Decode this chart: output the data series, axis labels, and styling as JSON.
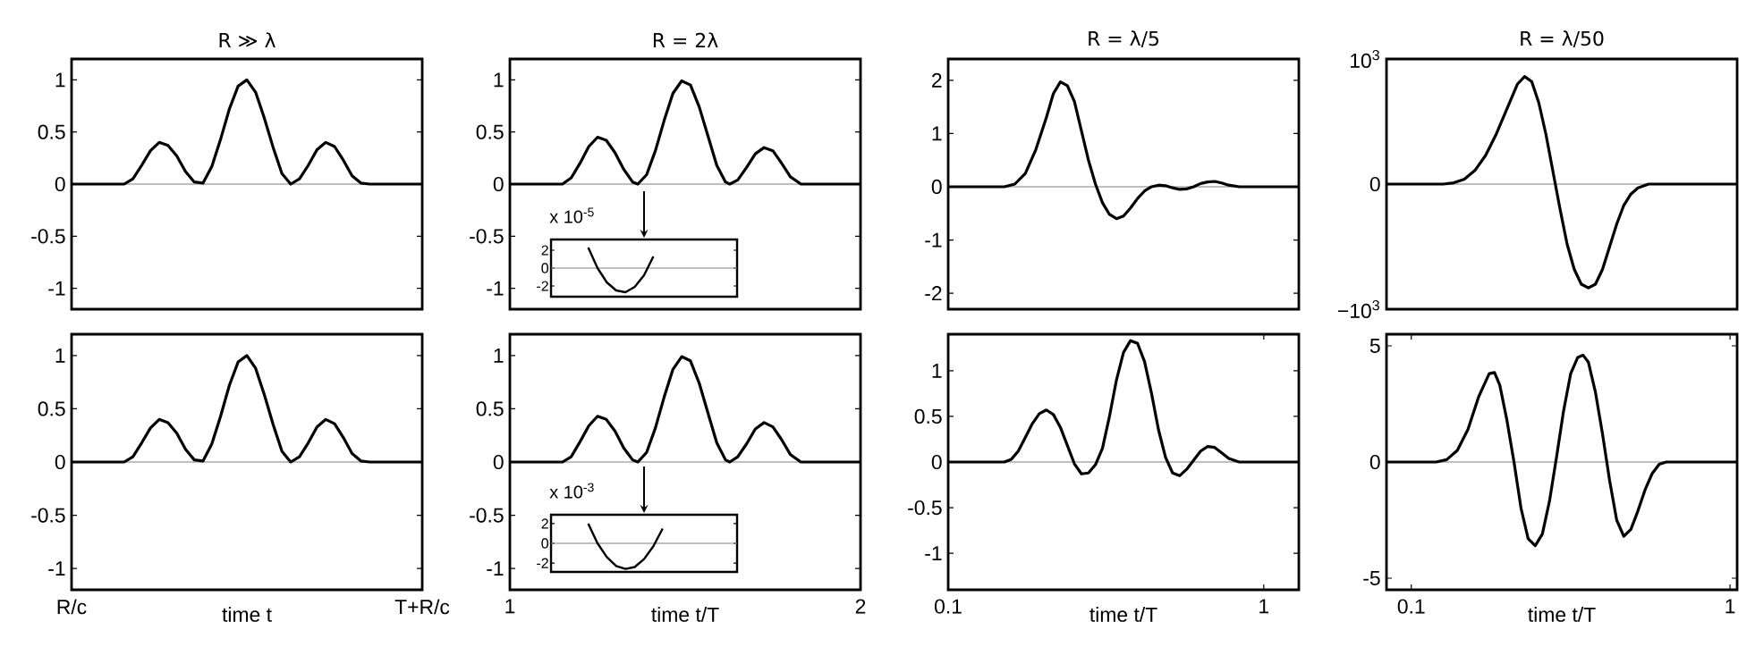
{
  "chart_data": [
    {
      "type": "line",
      "title": "R ≫ λ",
      "categories": [
        null,
        null,
        null,
        null,
        null,
        null,
        null,
        null,
        null,
        null,
        null,
        null,
        null,
        null,
        null,
        null,
        null,
        null,
        null,
        null,
        null,
        null,
        null,
        null,
        null,
        null,
        null,
        null,
        null,
        null,
        null,
        null,
        null,
        null,
        null,
        null,
        null,
        null,
        null,
        null,
        null
      ],
      "ylim": [
        -1.2,
        1.2
      ],
      "yticks": [
        -1,
        -0.5,
        0,
        0.5,
        1
      ],
      "tick_labels": "y",
      "ref_lines": [
        {
          "axis": "y",
          "value": 0,
          "color": "#808080"
        }
      ],
      "series": [
        {
          "color": "#000000",
          "values": [
            0,
            0,
            0,
            0,
            0,
            0,
            0,
            0.05,
            0.18,
            0.32,
            0.4,
            0.37,
            0.27,
            0.12,
            0.02,
            0.01,
            0.17,
            0.43,
            0.72,
            0.94,
            1,
            0.88,
            0.63,
            0.35,
            0.1,
            0,
            0.05,
            0.18,
            0.33,
            0.4,
            0.36,
            0.23,
            0.08,
            0.01,
            0,
            0,
            0,
            0,
            0,
            0,
            0
          ]
        }
      ]
    },
    {
      "type": "line",
      "title": "R = 2λ",
      "xlim": [
        1,
        2
      ],
      "ylim": [
        -1.2,
        1.2
      ],
      "yticks": [
        -1,
        -0.5,
        0,
        0.5,
        1
      ],
      "tick_labels": "y",
      "ref_lines": [
        {
          "axis": "y",
          "value": 0,
          "color": "#808080"
        }
      ],
      "series": [
        {
          "color": "#000000",
          "x": [
            1,
            1.15,
            1.175,
            1.2,
            1.225,
            1.25,
            1.275,
            1.3,
            1.325,
            1.35,
            1.365,
            1.39,
            1.415,
            1.44,
            1.465,
            1.49,
            1.515,
            1.54,
            1.565,
            1.59,
            1.615,
            1.627,
            1.65,
            1.675,
            1.7,
            1.725,
            1.75,
            1.775,
            1.8,
            1.83,
            2
          ],
          "values": [
            0,
            0,
            0.06,
            0.2,
            0.36,
            0.45,
            0.42,
            0.3,
            0.14,
            0.02,
            0,
            0.09,
            0.32,
            0.61,
            0.87,
            0.99,
            0.95,
            0.74,
            0.46,
            0.18,
            0.02,
            0,
            0.04,
            0.16,
            0.29,
            0.35,
            0.32,
            0.2,
            0.07,
            0,
            0
          ]
        }
      ]
    },
    {
      "type": "line",
      "title": "R = λ/5",
      "xlim": [
        0.1,
        1.1
      ],
      "ylim": [
        -2.3,
        2.4
      ],
      "yticks": [
        -2,
        -1,
        0,
        1,
        2
      ],
      "tick_labels": "y",
      "ref_lines": [
        {
          "axis": "y",
          "value": 0,
          "color": "#808080"
        }
      ],
      "series": [
        {
          "color": "#000000",
          "x": [
            0.1,
            0.26,
            0.29,
            0.32,
            0.35,
            0.38,
            0.4,
            0.42,
            0.44,
            0.46,
            0.48,
            0.5,
            0.52,
            0.54,
            0.56,
            0.58,
            0.6,
            0.62,
            0.64,
            0.66,
            0.68,
            0.7,
            0.72,
            0.74,
            0.76,
            0.78,
            0.8,
            0.82,
            0.84,
            0.86,
            0.88,
            0.9,
            0.93,
            1.1
          ],
          "values": [
            0,
            0,
            0.05,
            0.25,
            0.7,
            1.3,
            1.75,
            1.97,
            1.9,
            1.6,
            1.05,
            0.5,
            0.05,
            -0.3,
            -0.52,
            -0.6,
            -0.55,
            -0.4,
            -0.22,
            -0.08,
            0,
            0.03,
            0.02,
            -0.02,
            -0.05,
            -0.04,
            0,
            0.06,
            0.09,
            0.1,
            0.07,
            0.03,
            0,
            0
          ]
        }
      ]
    },
    {
      "type": "line",
      "title": "R = λ/50",
      "xlim": [
        0.03,
        1.02
      ],
      "ylim": [
        -1000,
        1000
      ],
      "yticks": [
        {
          "value": -1000,
          "label": "−10$^{3}$"
        },
        0,
        {
          "value": 1000,
          "label": "10$^{3}$"
        }
      ],
      "tick_labels": "y",
      "ref_lines": [
        {
          "axis": "y",
          "value": 0,
          "color": "#808080"
        }
      ],
      "series": [
        {
          "color": "#000000",
          "x": [
            0.03,
            0.19,
            0.22,
            0.25,
            0.28,
            0.31,
            0.34,
            0.37,
            0.4,
            0.42,
            0.44,
            0.46,
            0.48,
            0.5,
            0.52,
            0.54,
            0.56,
            0.58,
            0.6,
            0.62,
            0.64,
            0.66,
            0.68,
            0.7,
            0.72,
            0.74,
            0.77,
            0.8,
            1.02
          ],
          "values": [
            0,
            0,
            10,
            40,
            110,
            230,
            400,
            600,
            800,
            860,
            820,
            650,
            400,
            100,
            -200,
            -480,
            -680,
            -800,
            -830,
            -800,
            -680,
            -500,
            -320,
            -170,
            -80,
            -30,
            0,
            0,
            0
          ]
        }
      ]
    },
    {
      "type": "line",
      "xlabel": "time t",
      "categories": [
        "R/c",
        null,
        null,
        null,
        null,
        null,
        null,
        null,
        null,
        null,
        null,
        null,
        null,
        null,
        null,
        null,
        null,
        null,
        null,
        null,
        null,
        null,
        null,
        null,
        null,
        null,
        null,
        null,
        null,
        null,
        null,
        null,
        null,
        null,
        null,
        null,
        null,
        null,
        null,
        null,
        "T+R/c"
      ],
      "ylim": [
        -1.2,
        1.2
      ],
      "yticks": [
        -1,
        -0.5,
        0,
        0.5,
        1
      ],
      "ref_lines": [
        {
          "axis": "y",
          "value": 0,
          "color": "#808080"
        }
      ],
      "series": [
        {
          "color": "#000000",
          "values": [
            0,
            0,
            0,
            0,
            0,
            0,
            0,
            0.05,
            0.18,
            0.32,
            0.4,
            0.37,
            0.27,
            0.12,
            0.02,
            0.01,
            0.17,
            0.43,
            0.72,
            0.94,
            1,
            0.88,
            0.63,
            0.35,
            0.1,
            0,
            0.05,
            0.18,
            0.33,
            0.4,
            0.36,
            0.23,
            0.08,
            0.01,
            0,
            0,
            0,
            0,
            0,
            0,
            0
          ]
        }
      ]
    },
    {
      "type": "line",
      "xlabel": "time t/T",
      "xlim": [
        1,
        2
      ],
      "xticks": [
        1,
        2
      ],
      "ylim": [
        -1.2,
        1.2
      ],
      "yticks": [
        -1,
        -0.5,
        0,
        0.5,
        1
      ],
      "ref_lines": [
        {
          "axis": "y",
          "value": 0,
          "color": "#808080"
        }
      ],
      "series": [
        {
          "color": "#000000",
          "x": [
            1,
            1.15,
            1.175,
            1.2,
            1.225,
            1.25,
            1.275,
            1.3,
            1.325,
            1.35,
            1.365,
            1.39,
            1.415,
            1.44,
            1.465,
            1.49,
            1.515,
            1.54,
            1.565,
            1.59,
            1.615,
            1.627,
            1.65,
            1.675,
            1.7,
            1.725,
            1.75,
            1.775,
            1.8,
            1.83,
            2
          ],
          "values": [
            0,
            0,
            0.05,
            0.19,
            0.34,
            0.43,
            0.4,
            0.29,
            0.13,
            0.02,
            0,
            0.09,
            0.32,
            0.61,
            0.87,
            0.99,
            0.95,
            0.74,
            0.46,
            0.18,
            0.02,
            0,
            0.05,
            0.17,
            0.31,
            0.37,
            0.33,
            0.21,
            0.07,
            0,
            0
          ]
        }
      ]
    },
    {
      "type": "line",
      "xlabel": "time t/T",
      "xlim": [
        0.1,
        1.1
      ],
      "xticks": [
        0.1,
        1
      ],
      "ylim": [
        -1.4,
        1.4
      ],
      "yticks": [
        -1,
        -0.5,
        0,
        0.5,
        1
      ],
      "ref_lines": [
        {
          "axis": "y",
          "value": 0,
          "color": "#808080"
        }
      ],
      "series": [
        {
          "color": "#000000",
          "x": [
            0.1,
            0.26,
            0.28,
            0.3,
            0.32,
            0.34,
            0.36,
            0.38,
            0.4,
            0.42,
            0.44,
            0.46,
            0.48,
            0.5,
            0.52,
            0.54,
            0.56,
            0.58,
            0.6,
            0.62,
            0.64,
            0.66,
            0.68,
            0.7,
            0.72,
            0.74,
            0.76,
            0.78,
            0.8,
            0.82,
            0.84,
            0.86,
            0.88,
            0.9,
            0.93,
            1.1
          ],
          "values": [
            0,
            0,
            0.03,
            0.12,
            0.27,
            0.42,
            0.53,
            0.57,
            0.52,
            0.38,
            0.18,
            -0.02,
            -0.13,
            -0.12,
            -0.03,
            0.15,
            0.5,
            0.9,
            1.2,
            1.33,
            1.3,
            1.1,
            0.75,
            0.35,
            0.05,
            -0.12,
            -0.15,
            -0.08,
            0.02,
            0.12,
            0.17,
            0.16,
            0.1,
            0.04,
            0,
            0
          ]
        }
      ]
    },
    {
      "type": "line",
      "xlabel": "time t/T",
      "xlim": [
        0.03,
        1.02
      ],
      "xticks": [
        0.1,
        1
      ],
      "ylim": [
        -5.5,
        5.5
      ],
      "yticks": [
        -5,
        0,
        5
      ],
      "ref_lines": [
        {
          "axis": "y",
          "value": 0,
          "color": "#808080"
        }
      ],
      "series": [
        {
          "color": "#000000",
          "x": [
            0.03,
            0.17,
            0.2,
            0.23,
            0.26,
            0.29,
            0.32,
            0.335,
            0.35,
            0.37,
            0.39,
            0.41,
            0.43,
            0.45,
            0.47,
            0.49,
            0.51,
            0.53,
            0.55,
            0.57,
            0.585,
            0.6,
            0.62,
            0.64,
            0.66,
            0.68,
            0.7,
            0.72,
            0.74,
            0.76,
            0.78,
            0.8,
            0.82,
            1.02
          ],
          "values": [
            0,
            0,
            0.1,
            0.5,
            1.4,
            2.8,
            3.8,
            3.85,
            3.3,
            1.8,
            0,
            -2,
            -3.3,
            -3.6,
            -3.1,
            -1.7,
            0.2,
            2.2,
            3.8,
            4.5,
            4.6,
            4.3,
            3,
            1.2,
            -0.8,
            -2.5,
            -3.2,
            -2.9,
            -2.1,
            -1.2,
            -0.5,
            -0.1,
            0,
            0
          ]
        }
      ]
    },
    {
      "type": "line",
      "categories": [
        null,
        null,
        null,
        null,
        null,
        null,
        null,
        null,
        null,
        null,
        null,
        null,
        null,
        null,
        null,
        null,
        null,
        null,
        null,
        null,
        null
      ],
      "ylim": [
        -3.2,
        3.2
      ],
      "yticks": [
        -2,
        0,
        2
      ],
      "tick_labels": "y",
      "annotations": [
        "x 10$^{-5}$"
      ],
      "ref_lines": [
        {
          "axis": "y",
          "value": 0,
          "color": "#808080"
        }
      ],
      "series": [
        {
          "color": "#000000",
          "values": [
            null,
            null,
            null,
            null,
            2.3,
            0,
            -1.6,
            -2.5,
            -2.7,
            -2.1,
            -0.8,
            1.3,
            null,
            null,
            null,
            null,
            null,
            null,
            null,
            null,
            null
          ]
        }
      ]
    },
    {
      "type": "line",
      "categories": [
        null,
        null,
        null,
        null,
        null,
        null,
        null,
        null,
        null,
        null,
        null,
        null,
        null,
        null,
        null,
        null,
        null,
        null,
        null,
        null,
        null
      ],
      "ylim": [
        -2.9,
        2.9
      ],
      "yticks": [
        -2,
        0,
        2
      ],
      "tick_labels": "y",
      "annotations": [
        "x 10$^{-3}$"
      ],
      "ref_lines": [
        {
          "axis": "y",
          "value": 0,
          "color": "#808080"
        }
      ],
      "series": [
        {
          "color": "#000000",
          "values": [
            null,
            null,
            null,
            null,
            2,
            0,
            -1.4,
            -2.3,
            -2.6,
            -2.4,
            -1.6,
            -0.3,
            1.5,
            null,
            null,
            null,
            null,
            null,
            null,
            null,
            null
          ]
        }
      ]
    }
  ]
}
